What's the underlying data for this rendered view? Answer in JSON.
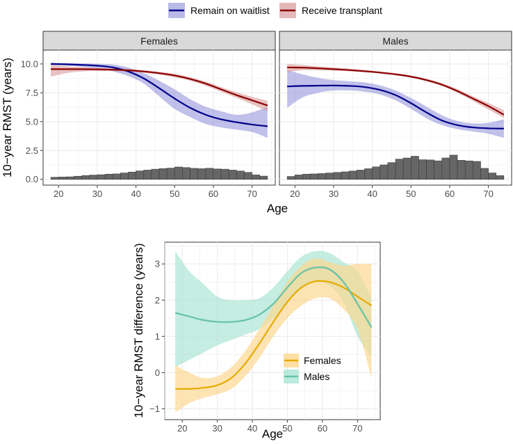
{
  "colors": {
    "waitlist": "#00008B",
    "waitlist_band": "#8c8cd9",
    "transplant": "#8B0000",
    "transplant_band": "#d99a9a",
    "females": "#E6AB02",
    "females_band": "#FDD58A",
    "males": "#66C2A5",
    "males_band": "#A6E3D2",
    "hist": "#666666",
    "strip_bg": "#d9d9d9",
    "grid": "#ebebeb"
  },
  "chart_data": [
    {
      "type": "line",
      "facets": [
        "Females",
        "Males"
      ],
      "legend": {
        "position": "top",
        "items": [
          "Remain on waitlist",
          "Receive transplant"
        ]
      },
      "xlabel": "Age",
      "ylabel": "10−year RMST (years)",
      "xlim": [
        16,
        76
      ],
      "ylim": [
        -0.5,
        11.2
      ],
      "xticks": [
        20,
        30,
        40,
        50,
        60,
        70
      ],
      "xtick_labels": [
        "20",
        "30",
        "40",
        "50",
        "60",
        "70"
      ],
      "yticks": [
        0,
        2.5,
        5,
        7.5,
        10
      ],
      "ytick_labels": [
        "0.0",
        "2.5",
        "5.0",
        "7.5",
        "10.0"
      ],
      "grid": true,
      "x": [
        18,
        22,
        26,
        30,
        34,
        38,
        42,
        46,
        50,
        54,
        58,
        62,
        66,
        70,
        74
      ],
      "panels": [
        {
          "name": "Females",
          "series": [
            {
              "name": "Remain on waitlist",
              "values": [
                10.0,
                9.97,
                9.92,
                9.85,
                9.7,
                9.35,
                8.75,
                7.9,
                7.0,
                6.2,
                5.6,
                5.2,
                4.95,
                4.75,
                4.6
              ],
              "lower": [
                9.9,
                9.85,
                9.75,
                9.6,
                9.35,
                8.95,
                8.3,
                7.2,
                6.1,
                5.4,
                4.8,
                4.5,
                4.3,
                4.1,
                3.6
              ],
              "upper": [
                10.1,
                10.08,
                10.05,
                10.02,
                9.95,
                9.7,
                9.2,
                8.55,
                7.8,
                6.95,
                6.3,
                5.9,
                5.6,
                5.8,
                6.3
              ]
            },
            {
              "name": "Receive transplant",
              "values": [
                9.55,
                9.55,
                9.55,
                9.53,
                9.5,
                9.45,
                9.35,
                9.2,
                9.0,
                8.7,
                8.3,
                7.8,
                7.3,
                6.85,
                6.4
              ],
              "lower": [
                8.9,
                9.2,
                9.35,
                9.38,
                9.38,
                9.34,
                9.24,
                9.08,
                8.85,
                8.55,
                8.12,
                7.6,
                7.05,
                6.5,
                5.9
              ],
              "upper": [
                9.9,
                9.8,
                9.72,
                9.67,
                9.62,
                9.56,
                9.46,
                9.32,
                9.15,
                8.85,
                8.48,
                8.0,
                7.55,
                7.15,
                6.8
              ]
            }
          ],
          "histogram": {
            "bin_start": 18,
            "bin_width": 2,
            "heights": [
              0.18,
              0.2,
              0.22,
              0.27,
              0.33,
              0.37,
              0.4,
              0.45,
              0.47,
              0.55,
              0.63,
              0.73,
              0.8,
              0.88,
              0.93,
              0.97,
              1.07,
              1.02,
              0.95,
              0.92,
              0.96,
              0.9,
              0.88,
              0.8,
              0.72,
              0.6,
              0.38,
              0.28
            ]
          }
        },
        {
          "name": "Males",
          "series": [
            {
              "name": "Remain on waitlist",
              "values": [
                8.05,
                8.1,
                8.12,
                8.13,
                8.1,
                8.0,
                7.75,
                7.3,
                6.6,
                5.8,
                5.1,
                4.7,
                4.5,
                4.42,
                4.4
              ],
              "lower": [
                6.2,
                7.1,
                7.5,
                7.7,
                7.7,
                7.6,
                7.35,
                6.85,
                6.1,
                5.3,
                4.7,
                4.35,
                4.15,
                3.95,
                3.6
              ],
              "upper": [
                9.5,
                9.1,
                8.8,
                8.6,
                8.5,
                8.4,
                8.15,
                7.7,
                7.05,
                6.3,
                5.55,
                5.05,
                4.85,
                4.9,
                5.2
              ]
            },
            {
              "name": "Receive transplant",
              "values": [
                9.7,
                9.68,
                9.62,
                9.55,
                9.47,
                9.37,
                9.25,
                9.1,
                8.9,
                8.6,
                8.2,
                7.65,
                7.0,
                6.35,
                5.6
              ],
              "lower": [
                9.3,
                9.45,
                9.45,
                9.42,
                9.37,
                9.28,
                9.17,
                9.02,
                8.82,
                8.5,
                8.08,
                7.5,
                6.8,
                6.05,
                5.3
              ],
              "upper": [
                10.0,
                9.9,
                9.8,
                9.7,
                9.6,
                9.48,
                9.35,
                9.2,
                9.0,
                8.72,
                8.34,
                7.82,
                7.2,
                6.62,
                6.0
              ]
            }
          ],
          "histogram": {
            "bin_start": 18,
            "bin_width": 2,
            "heights": [
              0.25,
              0.38,
              0.45,
              0.47,
              0.5,
              0.55,
              0.6,
              0.65,
              0.72,
              0.8,
              0.92,
              1.08,
              1.25,
              1.45,
              1.75,
              1.85,
              2.0,
              1.7,
              1.68,
              1.6,
              1.85,
              2.1,
              1.65,
              1.6,
              1.55,
              0.95,
              0.55,
              0.32
            ]
          }
        }
      ]
    },
    {
      "type": "line",
      "legend": {
        "position": "bottom-right",
        "items": [
          "Females",
          "Males"
        ]
      },
      "xlabel": "Age",
      "ylabel": "10−year RMST difference (years)",
      "xlim": [
        15,
        76.5
      ],
      "ylim": [
        -1.3,
        3.6
      ],
      "xticks": [
        20,
        30,
        40,
        50,
        60,
        70
      ],
      "xtick_labels": [
        "20",
        "30",
        "40",
        "50",
        "60",
        "70"
      ],
      "yticks": [
        -1,
        0,
        1,
        2,
        3
      ],
      "ytick_labels": [
        "−1",
        "0",
        "1",
        "2",
        "3"
      ],
      "grid": true,
      "x": [
        18,
        22,
        26,
        30,
        34,
        38,
        42,
        46,
        50,
        54,
        58,
        62,
        66,
        70,
        74
      ],
      "series": [
        {
          "name": "Females",
          "values": [
            -0.45,
            -0.45,
            -0.42,
            -0.35,
            -0.15,
            0.25,
            0.8,
            1.4,
            1.95,
            2.35,
            2.52,
            2.5,
            2.35,
            2.1,
            1.85
          ],
          "lower": [
            -1.1,
            -0.85,
            -0.7,
            -0.6,
            -0.45,
            -0.1,
            0.4,
            1.0,
            1.5,
            1.85,
            2.05,
            2.05,
            1.75,
            1.2,
            -0.15
          ],
          "upper": [
            0.2,
            0.0,
            -0.15,
            -0.1,
            0.15,
            0.6,
            1.2,
            1.85,
            2.5,
            2.95,
            3.15,
            3.05,
            2.95,
            3.0,
            3.0
          ]
        },
        {
          "name": "Males",
          "values": [
            1.65,
            1.55,
            1.45,
            1.4,
            1.4,
            1.45,
            1.6,
            1.9,
            2.35,
            2.75,
            2.9,
            2.85,
            2.5,
            1.9,
            1.25
          ],
          "lower": [
            0.15,
            0.35,
            0.55,
            0.75,
            0.9,
            1.05,
            1.2,
            1.5,
            1.95,
            2.3,
            2.5,
            2.4,
            1.95,
            1.0,
            0.45
          ],
          "upper": [
            3.35,
            2.8,
            2.45,
            2.1,
            2.0,
            2.0,
            2.05,
            2.35,
            2.8,
            3.2,
            3.35,
            3.3,
            3.05,
            2.8,
            2.05
          ]
        }
      ]
    }
  ]
}
